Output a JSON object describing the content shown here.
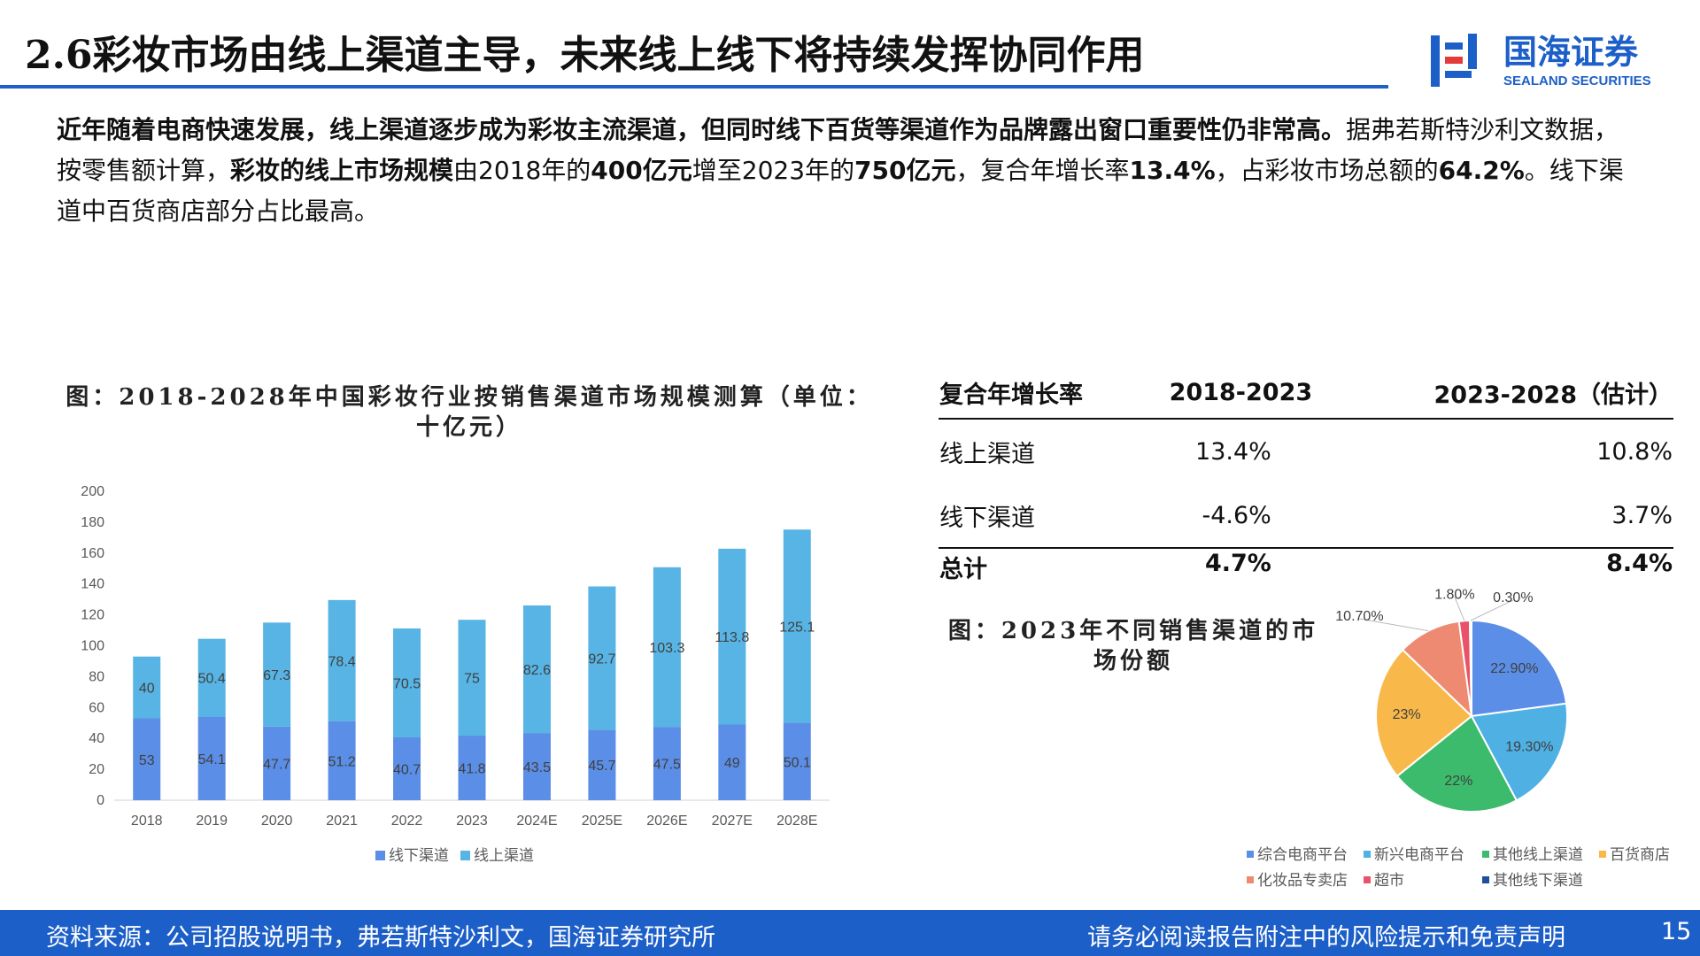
{
  "header": {
    "title": "2.6彩妆市场由线上渠道主导，未来线上线下将持续发挥协同作用",
    "logo_name": "国海证券",
    "logo_en": "SEALAND SECURITIES"
  },
  "intro": [
    {
      "text": "近年随着电商快速发展，线上渠道逐步成为彩妆主流渠道，但同时线下百货等渠道作为品牌露出窗口重要性仍非常高。",
      "bold": true
    },
    {
      "text": "据弗若斯特沙利文数据，按零售额计算，",
      "bold": false
    },
    {
      "text": "彩妆的线上市场规模",
      "bold": true
    },
    {
      "text": "由2018年的",
      "bold": false
    },
    {
      "text": "400亿元",
      "bold": true
    },
    {
      "text": "增至2023年的",
      "bold": false
    },
    {
      "text": "750亿元",
      "bold": true
    },
    {
      "text": "，复合年增长率",
      "bold": false
    },
    {
      "text": "13.4%",
      "bold": true
    },
    {
      "text": "，占彩妆市场总额的",
      "bold": false
    },
    {
      "text": "64.2%",
      "bold": true
    },
    {
      "text": "。线下渠道中百货商店部分占比最高。",
      "bold": false
    }
  ],
  "chart_data": [
    {
      "type": "bar",
      "stacked": true,
      "title": "图：2018-2028年中国彩妆行业按销售渠道市场规模测算（单位：十亿元）",
      "categories": [
        "2018",
        "2019",
        "2020",
        "2021",
        "2022",
        "2023",
        "2024E",
        "2025E",
        "2026E",
        "2027E",
        "2028E"
      ],
      "series": [
        {
          "name": "线下渠道",
          "color": "#5b8ee6",
          "values": [
            53,
            54.1,
            47.7,
            51.2,
            40.7,
            41.8,
            43.5,
            45.7,
            47.5,
            49,
            50.1
          ]
        },
        {
          "name": "线上渠道",
          "color": "#57b4e4",
          "values": [
            40,
            50.4,
            67.3,
            78.4,
            70.5,
            75,
            82.6,
            92.7,
            103.3,
            113.8,
            125.1
          ]
        }
      ],
      "ylim": [
        0,
        200
      ],
      "yticks": [
        0,
        20,
        40,
        60,
        80,
        100,
        120,
        140,
        160,
        180,
        200
      ],
      "grid": false,
      "legend": "bottom"
    },
    {
      "type": "pie",
      "title": "图：2023年不同销售渠道的市场份额",
      "categories": [
        "综合电商平台",
        "新兴电商平台",
        "其他线上渠道",
        "百货商店",
        "化妆品专卖店",
        "超市",
        "其他线下渠道"
      ],
      "values": [
        22.9,
        19.3,
        22,
        23,
        10.7,
        1.8,
        0.3
      ],
      "value_labels": [
        "22.90%",
        "19.30%",
        "22%",
        "23%",
        "10.70%",
        "1.80%",
        "0.30%"
      ],
      "colors": [
        "#5b8ee6",
        "#4fb0e3",
        "#3dbb6c",
        "#f9b84a",
        "#ef8a72",
        "#e8536a",
        "#1f4e9c"
      ],
      "legend": "bottom"
    }
  ],
  "table": {
    "header": [
      "复合年增长率",
      "2018-2023",
      "2023-2028（估计）"
    ],
    "rows": [
      [
        "线上渠道",
        "13.4%",
        "10.8%"
      ],
      [
        "线下渠道",
        "-4.6%",
        "3.7%"
      ],
      [
        "总计",
        "4.7%",
        "8.4%"
      ]
    ]
  },
  "footer": {
    "source": "资料来源：公司招股说明书，弗若斯特沙利文，国海证券研究所",
    "disclaimer": "请务必阅读报告附注中的风险提示和免责声明",
    "page": "15"
  }
}
